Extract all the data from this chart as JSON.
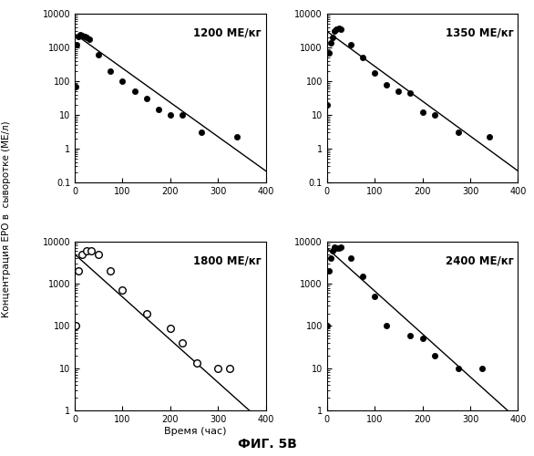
{
  "title": "ФИГ. 5В",
  "ylabel": "Концентрация ЕРО в  сыворотке (МЕ/л)",
  "xlabel_bottom": "Время (час)",
  "subplots": [
    {
      "label": "1200 МЕ/кг",
      "marker": "filled",
      "t_data": [
        1,
        4,
        8,
        12,
        16,
        20,
        25,
        30,
        50,
        75,
        100,
        125,
        150,
        175,
        200,
        225,
        265,
        340
      ],
      "y_data": [
        70,
        1200,
        2100,
        2400,
        2300,
        2100,
        2000,
        1800,
        600,
        200,
        100,
        50,
        30,
        15,
        10,
        10,
        3.0,
        2.3
      ],
      "line_t": [
        0,
        400
      ],
      "line_y": [
        2500,
        0.22
      ],
      "xlim": [
        0,
        400
      ],
      "ylim": [
        0.1,
        10000
      ]
    },
    {
      "label": "1350 МЕ/кг",
      "marker": "filled",
      "t_data": [
        1,
        4,
        8,
        12,
        16,
        20,
        25,
        30,
        50,
        75,
        100,
        125,
        150,
        175,
        200,
        225,
        275,
        340
      ],
      "y_data": [
        20,
        700,
        1400,
        2000,
        3000,
        3500,
        3800,
        3500,
        1200,
        500,
        180,
        80,
        50,
        45,
        12,
        10,
        3.0,
        2.2
      ],
      "line_t": [
        0,
        400
      ],
      "line_y": [
        3000,
        0.22
      ],
      "xlim": [
        0,
        400
      ],
      "ylim": [
        0.1,
        10000
      ]
    },
    {
      "label": "1800 МЕ/кг",
      "marker": "open",
      "t_data": [
        1,
        8,
        16,
        25,
        35,
        50,
        75,
        100,
        150,
        200,
        225,
        255,
        300,
        325
      ],
      "y_data": [
        100,
        2000,
        5000,
        6000,
        6000,
        5000,
        2000,
        700,
        200,
        90,
        40,
        13,
        10,
        10
      ],
      "line_t": [
        0,
        375
      ],
      "line_y": [
        5000,
        0.8
      ],
      "xlim": [
        0,
        400
      ],
      "ylim": [
        1,
        10000
      ]
    },
    {
      "label": "2400 МЕ/кг",
      "marker": "filled",
      "t_data": [
        1,
        4,
        8,
        12,
        16,
        20,
        25,
        30,
        50,
        75,
        100,
        125,
        175,
        200,
        225,
        275,
        325
      ],
      "y_data": [
        100,
        2000,
        4000,
        6000,
        7500,
        7000,
        7000,
        7500,
        4000,
        1500,
        500,
        100,
        60,
        50,
        20,
        10,
        10
      ],
      "line_t": [
        0,
        400
      ],
      "line_y": [
        7000,
        0.6
      ],
      "xlim": [
        0,
        400
      ],
      "ylim": [
        1,
        10000
      ]
    }
  ]
}
